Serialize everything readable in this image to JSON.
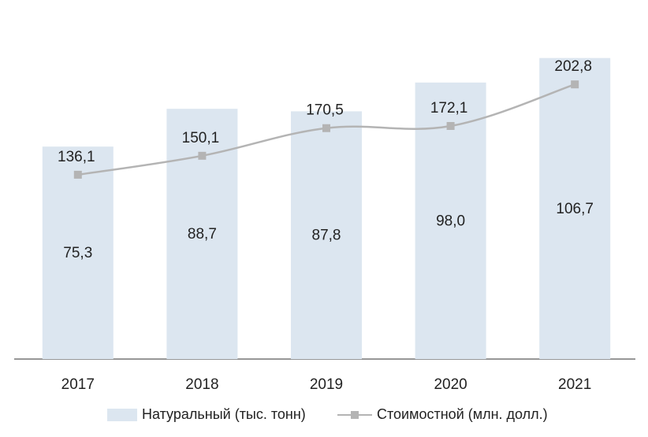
{
  "chart_data": {
    "type": "bar+line",
    "categories": [
      "2017",
      "2018",
      "2019",
      "2020",
      "2021"
    ],
    "series": [
      {
        "name": "Натуральный (тыс. тонн)",
        "type": "bar",
        "values": [
          75.3,
          88.7,
          87.8,
          98.0,
          106.7
        ],
        "labels": [
          "75,3",
          "88,7",
          "87,8",
          "98,0",
          "106,7"
        ],
        "color": "#dce6f0"
      },
      {
        "name": "Стоимостной (млн. долл.)",
        "type": "line",
        "values": [
          136.1,
          150.1,
          170.5,
          172.1,
          202.8
        ],
        "labels": [
          "136,1",
          "150,1",
          "170,5",
          "172,1",
          "202,8"
        ],
        "color": "#b4b4b4"
      }
    ],
    "title": "",
    "xlabel": "",
    "ylabel": "",
    "bar_axis_range": [
      0,
      120
    ],
    "line_axis_range": [
      0,
      250
    ],
    "grid": false,
    "legend_position": "bottom"
  },
  "legend": {
    "bar_label": "Натуральный (тыс. тонн)",
    "line_label": "Стоимостной (млн. долл.)"
  },
  "colors": {
    "bar": "#dce6f0",
    "line": "#b4b4b4",
    "axis": "#595959"
  }
}
